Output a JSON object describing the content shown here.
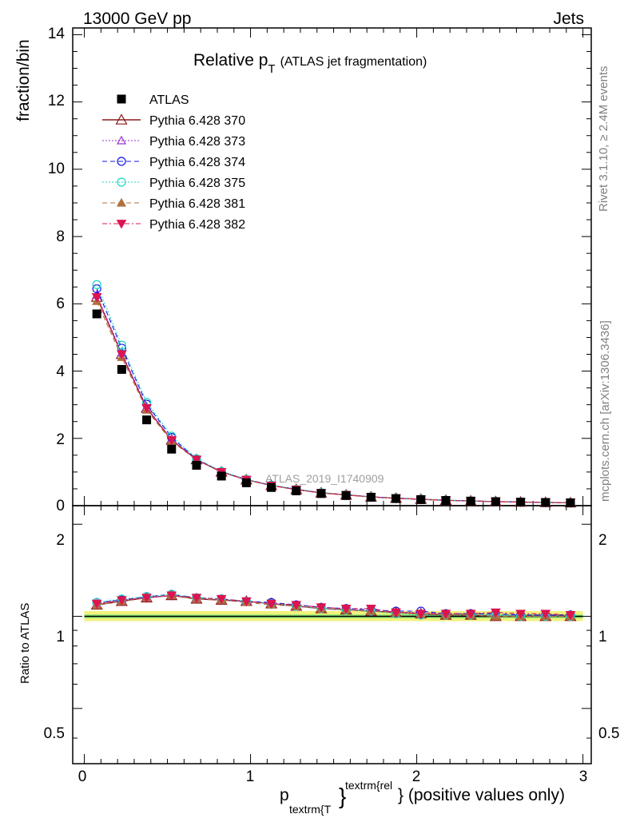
{
  "header": {
    "energy": "13000 GeV pp",
    "category": "Jets",
    "title_main": "Relative p",
    "title_sub": "T",
    "title_note": "(ATLAS jet fragmentation)",
    "analysis_id": "ATLAS_2019_I1740909",
    "side_rivet": "Rivet 3.1.10, ≥ 2.4M events",
    "side_mcplots": "mcplots.cern.ch [arXiv:1306.3436]"
  },
  "axes": {
    "ylabel_top": "fraction/bin",
    "ylabel_ratio": "Ratio to ATLAS",
    "xlabel_p": "p",
    "xlabel_sub": "textrm{T",
    "xlabel_brace": "}",
    "xlabel_sup": "textrm{rel",
    "xlabel_rest": "} (positive values only)",
    "x_ticks": [
      "0",
      "1",
      "2",
      "3"
    ],
    "y_ticks_top": [
      "0",
      "2",
      "4",
      "6",
      "8",
      "10",
      "12",
      "14"
    ],
    "y_ticks_ratio": [
      "0.5",
      "1",
      "2"
    ]
  },
  "legend": [
    "ATLAS",
    "Pythia 6.428 370",
    "Pythia 6.428 373",
    "Pythia 6.428 374",
    "Pythia 6.428 375",
    "Pythia 6.428 381",
    "Pythia 6.428 382"
  ],
  "colors": {
    "data": "#000000",
    "p370": "#8b1a1a",
    "p373": "#9932cc",
    "p374": "#1414e6",
    "p375": "#1fd8c0",
    "p381": "#b07040",
    "p382": "#dc1450",
    "band_outer": "#f2f27a",
    "band_inner": "#9af07a"
  },
  "chart_data": {
    "type": "scatter",
    "x": [
      0.075,
      0.225,
      0.375,
      0.525,
      0.675,
      0.825,
      0.975,
      1.125,
      1.275,
      1.425,
      1.575,
      1.725,
      1.875,
      2.025,
      2.175,
      2.325,
      2.475,
      2.625,
      2.775,
      2.925
    ],
    "xlim": [
      -0.07,
      3.05
    ],
    "ylim": [
      0,
      14.2
    ],
    "ratio_ylim": [
      0.33,
      2.3
    ],
    "data_values": [
      5.7,
      4.05,
      2.55,
      1.68,
      1.2,
      0.88,
      0.68,
      0.54,
      0.44,
      0.36,
      0.3,
      0.25,
      0.21,
      0.18,
      0.155,
      0.135,
      0.12,
      0.105,
      0.095,
      0.085
    ],
    "mc_values": [
      6.2,
      4.5,
      2.9,
      1.95,
      1.37,
      1.0,
      0.77,
      0.6,
      0.48,
      0.38,
      0.32,
      0.26,
      0.22,
      0.19,
      0.16,
      0.14,
      0.12,
      0.107,
      0.096,
      0.086
    ],
    "series": [
      {
        "name": "Pythia 6.428 370",
        "ratio": [
          1.09,
          1.12,
          1.15,
          1.17,
          1.14,
          1.13,
          1.12,
          1.1,
          1.08,
          1.06,
          1.05,
          1.04,
          1.03,
          1.02,
          1.01,
          1.01,
          1.0,
          1.0,
          1.0,
          1.0
        ]
      },
      {
        "name": "Pythia 6.428 373",
        "ratio": [
          1.1,
          1.13,
          1.15,
          1.17,
          1.15,
          1.13,
          1.12,
          1.1,
          1.08,
          1.06,
          1.05,
          1.04,
          1.03,
          1.03,
          1.02,
          1.02,
          1.01,
          1.01,
          1.01,
          1.01
        ]
      },
      {
        "name": "Pythia 6.428 374",
        "ratio": [
          1.11,
          1.13,
          1.16,
          1.18,
          1.15,
          1.14,
          1.12,
          1.11,
          1.09,
          1.07,
          1.06,
          1.05,
          1.04,
          1.04,
          1.02,
          1.02,
          1.02,
          1.01,
          1.01,
          1.01
        ]
      },
      {
        "name": "Pythia 6.428 375",
        "ratio": [
          1.11,
          1.14,
          1.16,
          1.18,
          1.15,
          1.14,
          1.12,
          1.1,
          1.08,
          1.06,
          1.05,
          1.04,
          1.02,
          1.01,
          1.01,
          1.01,
          1.01,
          1.0,
          1.0,
          1.0
        ]
      },
      {
        "name": "Pythia 6.428 381",
        "ratio": [
          1.09,
          1.12,
          1.15,
          1.17,
          1.14,
          1.13,
          1.11,
          1.09,
          1.08,
          1.06,
          1.05,
          1.04,
          1.03,
          1.02,
          1.01,
          1.01,
          1.0,
          1.0,
          1.0,
          1.0
        ]
      },
      {
        "name": "Pythia 6.428 382",
        "ratio": [
          1.1,
          1.13,
          1.15,
          1.17,
          1.15,
          1.14,
          1.12,
          1.1,
          1.09,
          1.07,
          1.06,
          1.06,
          1.03,
          1.02,
          1.02,
          1.02,
          1.03,
          1.02,
          1.02,
          1.01
        ]
      }
    ]
  }
}
